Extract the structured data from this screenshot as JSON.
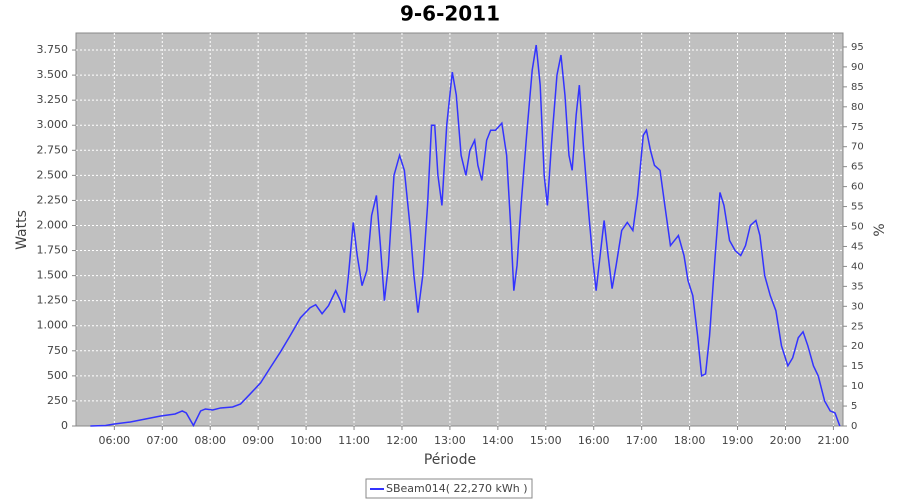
{
  "chart_data": {
    "type": "line",
    "title": "9-6-2011",
    "x_label": "Période",
    "y_label": "Watts",
    "y2_label": "%",
    "x": [
      "05:30",
      "05:49",
      "06:00",
      "06:20",
      "06:39",
      "06:58",
      "07:16",
      "07:25",
      "07:30",
      "07:39",
      "07:48",
      "07:54",
      "08:03",
      "08:13",
      "08:28",
      "08:38",
      "08:50",
      "09:03",
      "09:15",
      "09:28",
      "09:40",
      "09:53",
      "10:05",
      "10:12",
      "10:20",
      "10:28",
      "10:37",
      "10:43",
      "10:48",
      "10:53",
      "10:59",
      "11:04",
      "11:10",
      "11:16",
      "11:22",
      "11:28",
      "11:33",
      "11:38",
      "11:43",
      "11:50",
      "11:57",
      "12:03",
      "12:10",
      "12:15",
      "12:20",
      "12:26",
      "12:32",
      "12:37",
      "12:41",
      "12:45",
      "12:50",
      "12:56",
      "13:03",
      "13:08",
      "13:14",
      "13:20",
      "13:25",
      "13:31",
      "13:35",
      "13:40",
      "13:46",
      "13:51",
      "13:57",
      "14:05",
      "14:11",
      "14:16",
      "14:20",
      "14:24",
      "14:29",
      "14:36",
      "14:43",
      "14:48",
      "14:53",
      "14:58",
      "15:02",
      "15:07",
      "15:14",
      "15:19",
      "15:24",
      "15:29",
      "15:33",
      "15:38",
      "15:42",
      "15:47",
      "15:54",
      "15:59",
      "16:03",
      "16:08",
      "16:13",
      "16:18",
      "16:23",
      "16:28",
      "16:35",
      "16:42",
      "16:49",
      "16:55",
      "17:02",
      "17:06",
      "17:11",
      "17:16",
      "17:23",
      "17:29",
      "17:36",
      "17:41",
      "17:46",
      "17:53",
      "17:58",
      "18:04",
      "18:10",
      "18:15",
      "18:20",
      "18:25",
      "18:32",
      "18:38",
      "18:43",
      "18:50",
      "18:57",
      "19:04",
      "19:10",
      "19:16",
      "19:23",
      "19:28",
      "19:34",
      "19:41",
      "19:48",
      "19:55",
      "20:03",
      "20:09",
      "20:16",
      "20:22",
      "20:28",
      "20:35",
      "20:41",
      "20:49",
      "20:56",
      "21:02",
      "21:08"
    ],
    "series": [
      {
        "name": "SBeam014( 22,270 kWh )",
        "color": "#3333ff",
        "values": [
          0,
          5,
          20,
          40,
          70,
          100,
          120,
          150,
          130,
          5,
          150,
          170,
          160,
          180,
          190,
          220,
          320,
          430,
          580,
          740,
          900,
          1080,
          1180,
          1210,
          1120,
          1200,
          1350,
          1250,
          1130,
          1500,
          2030,
          1700,
          1400,
          1550,
          2100,
          2300,
          1800,
          1250,
          1600,
          2500,
          2700,
          2550,
          2000,
          1500,
          1130,
          1500,
          2200,
          3000,
          3000,
          2500,
          2200,
          3000,
          3530,
          3300,
          2700,
          2500,
          2750,
          2850,
          2600,
          2450,
          2850,
          2950,
          2950,
          3020,
          2700,
          2000,
          1350,
          1600,
          2200,
          2900,
          3550,
          3800,
          3400,
          2500,
          2200,
          2800,
          3500,
          3700,
          3300,
          2700,
          2550,
          3100,
          3400,
          2800,
          2100,
          1650,
          1350,
          1700,
          2050,
          1700,
          1370,
          1600,
          1950,
          2030,
          1950,
          2300,
          2900,
          2950,
          2750,
          2600,
          2550,
          2200,
          1800,
          1850,
          1900,
          1700,
          1450,
          1300,
          900,
          500,
          520,
          900,
          1700,
          2330,
          2200,
          1850,
          1750,
          1700,
          1800,
          2000,
          2050,
          1900,
          1500,
          1300,
          1150,
          800,
          600,
          680,
          880,
          940,
          800,
          600,
          500,
          250,
          150,
          130,
          0
        ]
      }
    ],
    "xlim": [
      "05:12",
      "21:12"
    ],
    "xticks": [
      "06:00",
      "07:00",
      "08:00",
      "09:00",
      "10:00",
      "11:00",
      "12:00",
      "13:00",
      "14:00",
      "15:00",
      "16:00",
      "17:00",
      "18:00",
      "19:00",
      "20:00",
      "21:00"
    ],
    "ylim": [
      0,
      3920
    ],
    "yticks": [
      0,
      {
        "value": 250,
        "label": "250"
      },
      500,
      750,
      {
        "value": 1000,
        "label": "1.000"
      },
      {
        "value": 1250,
        "label": "1.250"
      },
      {
        "value": 1500,
        "label": "1.500"
      },
      {
        "value": 1750,
        "label": "1.750"
      },
      {
        "value": 2000,
        "label": "2.000"
      },
      {
        "value": 2250,
        "label": "2.250"
      },
      {
        "value": 2500,
        "label": "2.500"
      },
      {
        "value": 2750,
        "label": "2.750"
      },
      {
        "value": 3000,
        "label": "3.000"
      },
      {
        "value": 3250,
        "label": "3.250"
      },
      {
        "value": 3500,
        "label": "3.500"
      },
      {
        "value": 3750,
        "label": "3.750"
      }
    ],
    "y2lim": [
      0,
      98.5
    ],
    "y2ticks": [
      0,
      5,
      10,
      15,
      20,
      25,
      30,
      35,
      40,
      45,
      50,
      55,
      60,
      65,
      70,
      75,
      80,
      85,
      90,
      95
    ],
    "grid": true,
    "legend": "bottom"
  }
}
